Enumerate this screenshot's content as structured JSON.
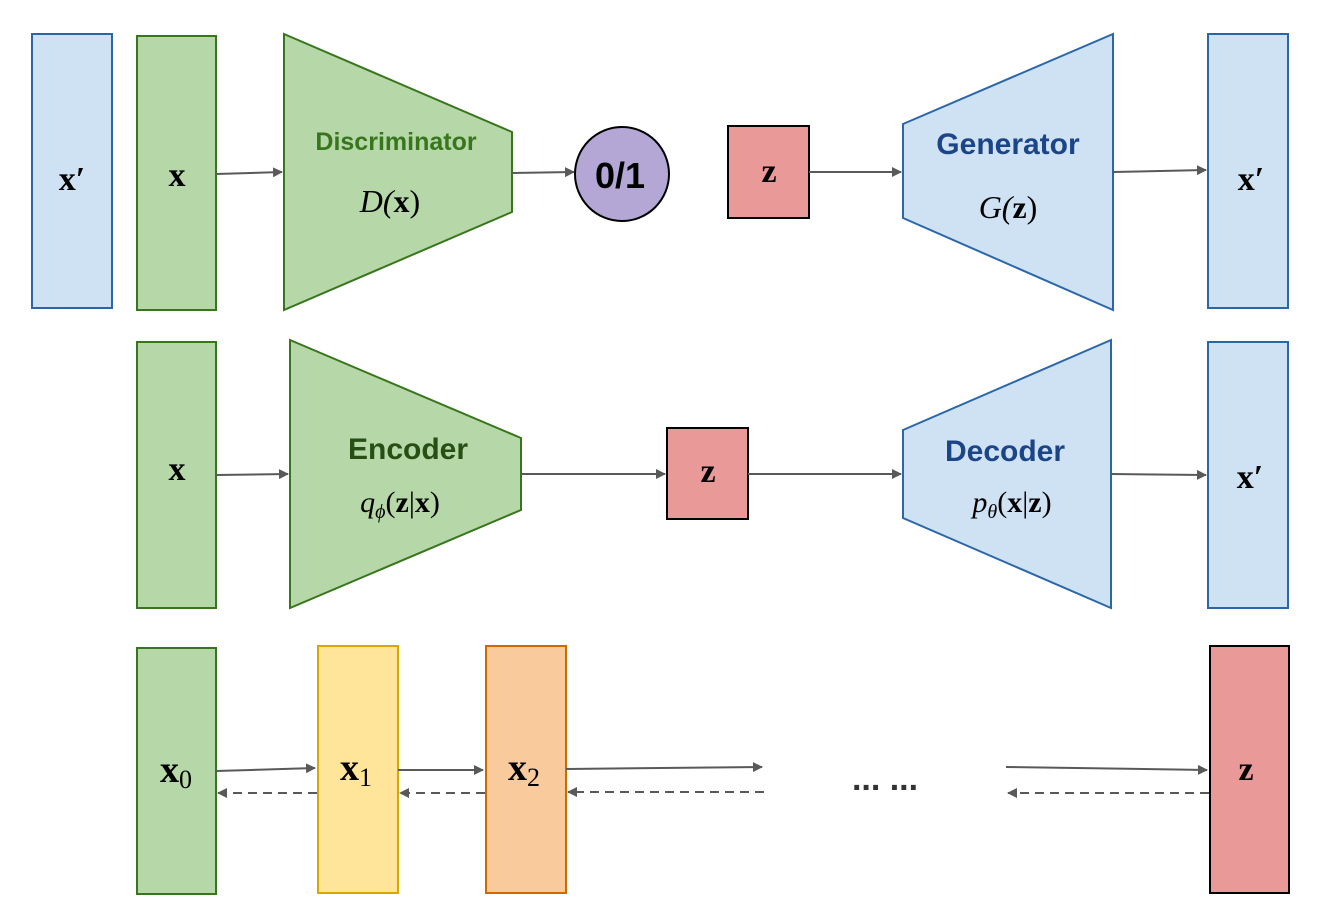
{
  "colors": {
    "blue_fill": "#cfe2f3",
    "blue_stroke": "#2b67a8",
    "green_fill": "#b6d7a8",
    "green_stroke": "#38761d",
    "red_fill": "#ea9999",
    "yellow_fill": "#ffe599",
    "yellow_stroke": "#d6a800",
    "orange_fill": "#f9cb9c",
    "orange_stroke": "#cc6a00",
    "purple_fill": "#b4a7d6",
    "arrow": "#595959",
    "green_text": "#38761d",
    "blue_text": "#1c4587"
  },
  "gan": {
    "x_real_left": "x′",
    "x_input": "x",
    "discriminator_title": "Discriminator",
    "discriminator_fn": {
      "a": "D(",
      "b": "x",
      "c": ")"
    },
    "output": "0/1",
    "z": "z",
    "generator_title": "Generator",
    "generator_fn": {
      "a": "G(",
      "b": "z",
      "c": ")"
    },
    "x_generated": "x′"
  },
  "vae": {
    "x_input": "x",
    "encoder_title": "Encoder",
    "encoder_fn": {
      "q": "q",
      "sub": "ϕ",
      "a": "(",
      "b": "z",
      "bar": "|",
      "c": "x",
      "d": ")"
    },
    "z": "z",
    "decoder_title": "Decoder",
    "decoder_fn": {
      "p": "p",
      "sub": "θ",
      "a": "(",
      "b": "x",
      "bar": "|",
      "c": "z",
      "d": ")"
    },
    "x_output": "x′"
  },
  "chain": {
    "x0": {
      "base": "x",
      "sub": "0"
    },
    "x1": {
      "base": "x",
      "sub": "1"
    },
    "x2": {
      "base": "x",
      "sub": "2"
    },
    "ellipsis": "... ...",
    "z": "z"
  }
}
